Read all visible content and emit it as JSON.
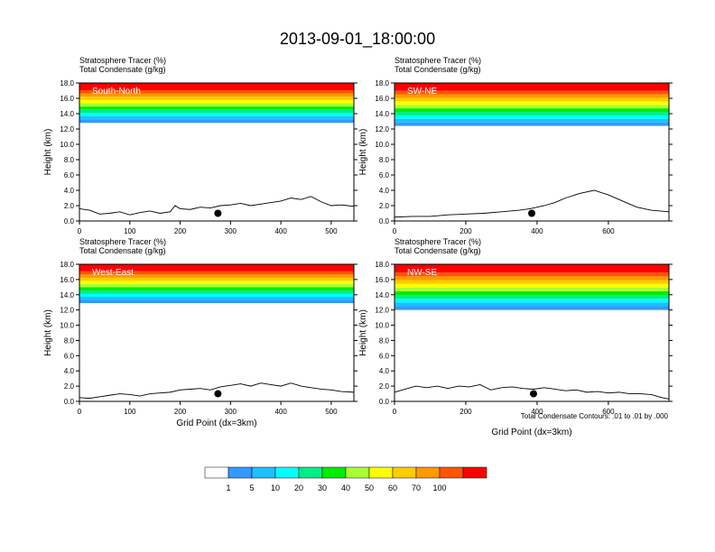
{
  "figure": {
    "title": "2013-09-01_18:00:00",
    "x_axis_label": "Grid Point (dx=3km)",
    "footnote": "Total Condensate Contours: .01 to .01 by .000"
  },
  "colorbar": {
    "colors": [
      "#ffffff",
      "#3399ff",
      "#1ec0ff",
      "#00ffff",
      "#00ee88",
      "#00ee00",
      "#aaff33",
      "#ffff00",
      "#ffcc00",
      "#ff9900",
      "#ff5500",
      "#ff0000"
    ],
    "labels": [
      "1",
      "5",
      "10",
      "20",
      "30",
      "40",
      "50",
      "60",
      "70",
      "100"
    ]
  },
  "chart_data": [
    {
      "type": "contour",
      "panel_label": "South-North",
      "line1": "Stratosphere Tracer   (%)",
      "line2": "Total Condensate   (g/kg)",
      "ylabel": "Height (km)",
      "xlabel": "",
      "xlim": [
        0,
        545
      ],
      "ylim": [
        0,
        18
      ],
      "xticks": [
        0,
        100,
        200,
        300,
        400,
        500
      ],
      "yticks": [
        "0.0",
        "2.0",
        "4.0",
        "6.0",
        "8.0",
        "10.0",
        "12.0",
        "14.0",
        "16.0",
        "18.0"
      ],
      "tracer_band_base_km": 12.8,
      "terrain_x": [
        0,
        20,
        40,
        60,
        80,
        100,
        120,
        140,
        160,
        180,
        190,
        200,
        220,
        240,
        260,
        280,
        300,
        320,
        340,
        360,
        380,
        400,
        420,
        440,
        460,
        480,
        500,
        520,
        545
      ],
      "terrain_y": [
        1.6,
        1.4,
        0.9,
        1.0,
        1.2,
        0.8,
        1.1,
        1.3,
        1.0,
        1.2,
        2.0,
        1.6,
        1.5,
        1.8,
        1.7,
        2.0,
        2.1,
        2.3,
        2.0,
        2.2,
        2.4,
        2.6,
        3.0,
        2.8,
        3.2,
        2.5,
        2.0,
        2.1,
        1.9
      ],
      "marker_x": 275,
      "marker_y_km": 1.0
    },
    {
      "type": "contour",
      "panel_label": "SW-NE",
      "line1": "Stratosphere Tracer   (%)",
      "line2": "Total Condensate   (g/kg)",
      "ylabel": "Height (km)",
      "xlabel": "",
      "xlim": [
        0,
        770
      ],
      "ylim": [
        0,
        18
      ],
      "xticks": [
        0,
        200,
        400,
        600
      ],
      "yticks": [
        "0.0",
        "2.0",
        "4.0",
        "6.0",
        "8.0",
        "10.0",
        "12.0",
        "14.0",
        "16.0",
        "18.0"
      ],
      "tracer_band_base_km": 12.4,
      "terrain_x": [
        0,
        50,
        100,
        150,
        200,
        250,
        300,
        350,
        380,
        420,
        450,
        480,
        520,
        560,
        600,
        640,
        680,
        720,
        770
      ],
      "terrain_y": [
        0.5,
        0.6,
        0.6,
        0.8,
        0.9,
        1.0,
        1.2,
        1.4,
        1.6,
        2.0,
        2.4,
        3.0,
        3.6,
        4.0,
        3.4,
        2.6,
        1.8,
        1.4,
        1.2
      ],
      "marker_x": 385,
      "marker_y_km": 1.0
    },
    {
      "type": "contour",
      "panel_label": "West-East",
      "line1": "Stratosphere Tracer   (%)",
      "line2": "Total Condensate   (g/kg)",
      "ylabel": "Height (km)",
      "xlabel": "Grid Point (dx=3km)",
      "xlim": [
        0,
        545
      ],
      "ylim": [
        0,
        18
      ],
      "xticks": [
        0,
        100,
        200,
        300,
        400,
        500
      ],
      "yticks": [
        "0.0",
        "2.0",
        "4.0",
        "6.0",
        "8.0",
        "10.0",
        "12.0",
        "14.0",
        "16.0",
        "18.0"
      ],
      "tracer_band_base_km": 12.9,
      "terrain_x": [
        0,
        20,
        40,
        60,
        80,
        100,
        120,
        140,
        160,
        180,
        200,
        220,
        240,
        260,
        280,
        300,
        320,
        340,
        360,
        380,
        400,
        420,
        440,
        460,
        480,
        500,
        520,
        545
      ],
      "terrain_y": [
        0.5,
        0.4,
        0.6,
        0.8,
        1.0,
        0.9,
        0.7,
        1.0,
        1.1,
        1.2,
        1.5,
        1.6,
        1.7,
        1.5,
        1.9,
        2.1,
        2.3,
        2.0,
        2.4,
        2.2,
        2.0,
        2.4,
        2.0,
        1.8,
        1.6,
        1.5,
        1.3,
        1.2
      ],
      "marker_x": 275,
      "marker_y_km": 1.0
    },
    {
      "type": "contour",
      "panel_label": "NW-SE",
      "line1": "Stratosphere Tracer   (%)",
      "line2": "Total Condensate   (g/kg)",
      "ylabel": "Height (km)",
      "xlabel": "Grid Point (dx=3km)",
      "xlim": [
        0,
        770
      ],
      "ylim": [
        0,
        18
      ],
      "xticks": [
        0,
        200,
        400,
        600
      ],
      "yticks": [
        "0.0",
        "2.0",
        "4.0",
        "6.0",
        "8.0",
        "10.0",
        "12.0",
        "14.0",
        "16.0",
        "18.0"
      ],
      "tracer_band_base_km": 12.0,
      "terrain_x": [
        0,
        30,
        60,
        90,
        120,
        150,
        180,
        210,
        240,
        270,
        300,
        330,
        360,
        390,
        420,
        450,
        480,
        510,
        540,
        570,
        600,
        630,
        660,
        690,
        720,
        750,
        770
      ],
      "terrain_y": [
        1.2,
        1.6,
        2.0,
        1.8,
        2.0,
        1.7,
        2.0,
        1.9,
        2.2,
        1.5,
        1.8,
        1.9,
        1.7,
        1.6,
        1.8,
        1.6,
        1.4,
        1.5,
        1.2,
        1.3,
        1.1,
        1.2,
        1.0,
        1.0,
        0.9,
        0.5,
        0.3
      ],
      "marker_x": 390,
      "marker_y_km": 1.0
    }
  ]
}
